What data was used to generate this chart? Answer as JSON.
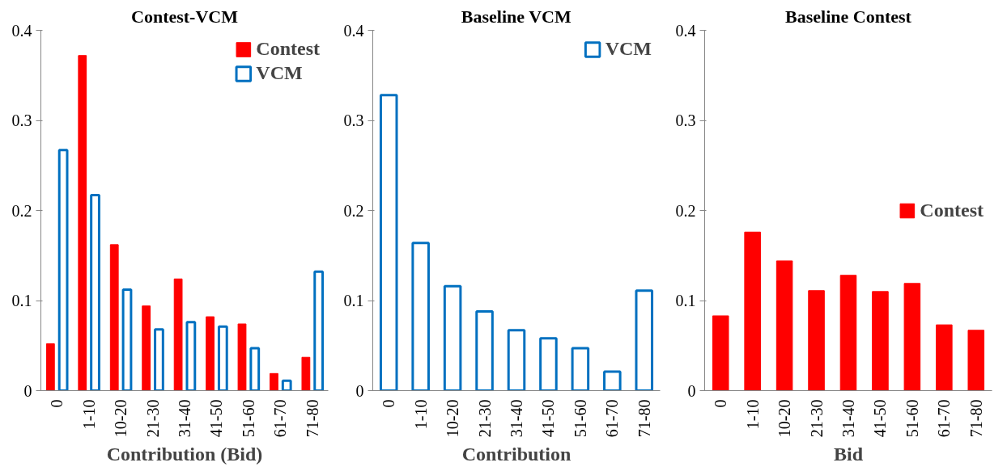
{
  "chart_data": [
    {
      "type": "bar",
      "title": "Contest-VCM",
      "xlabel": "Contribution (Bid)",
      "categories": [
        "0",
        "1-10",
        "10-20",
        "21-30",
        "31-40",
        "41-50",
        "51-60",
        "61-70",
        "71-80"
      ],
      "ylim": [
        0,
        0.4
      ],
      "yticks": [
        0,
        0.1,
        0.2,
        0.3,
        0.4
      ],
      "grid": false,
      "legend": "top right",
      "series": [
        {
          "name": "Contest",
          "color": "#ff0000",
          "values": [
            0.052,
            0.372,
            0.162,
            0.094,
            0.124,
            0.082,
            0.074,
            0.019,
            0.037
          ]
        },
        {
          "name": "VCM",
          "color": "#0070c0",
          "values": [
            0.267,
            0.217,
            0.112,
            0.068,
            0.076,
            0.071,
            0.047,
            0.011,
            0.132
          ]
        }
      ]
    },
    {
      "type": "bar",
      "title": "Baseline VCM",
      "xlabel": "Contribution",
      "categories": [
        "0",
        "1-10",
        "10-20",
        "21-30",
        "31-40",
        "41-50",
        "51-60",
        "61-70",
        "71-80"
      ],
      "ylim": [
        0,
        0.4
      ],
      "yticks": [
        0,
        0.1,
        0.2,
        0.3,
        0.4
      ],
      "grid": false,
      "legend": "top right",
      "series": [
        {
          "name": "VCM",
          "color": "#0070c0",
          "values": [
            0.328,
            0.164,
            0.116,
            0.088,
            0.067,
            0.058,
            0.047,
            0.021,
            0.111
          ]
        }
      ]
    },
    {
      "type": "bar",
      "title": "Baseline Contest",
      "xlabel": "Bid",
      "categories": [
        "0",
        "1-10",
        "10-20",
        "21-30",
        "31-40",
        "41-50",
        "51-60",
        "61-70",
        "71-80"
      ],
      "ylim": [
        0,
        0.4
      ],
      "yticks": [
        0,
        0.1,
        0.2,
        0.3,
        0.4
      ],
      "grid": false,
      "legend": "right",
      "series": [
        {
          "name": "Contest",
          "color": "#ff0000",
          "values": [
            0.083,
            0.176,
            0.144,
            0.111,
            0.128,
            0.11,
            0.119,
            0.073,
            0.067
          ]
        }
      ]
    }
  ]
}
